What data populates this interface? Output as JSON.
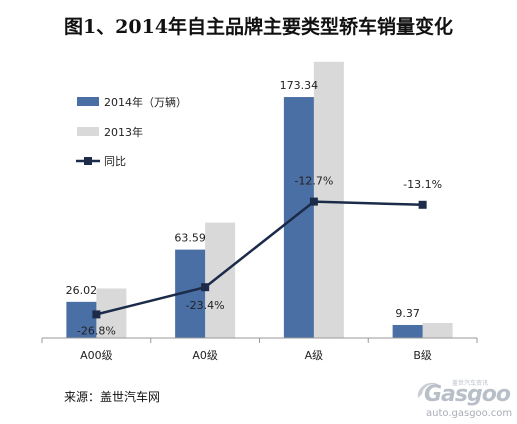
{
  "title": "图1、2014年自主品牌主要类型轿车销量变化",
  "source": "来源：盖世汽车网",
  "watermark": {
    "brand": "Gasgoo",
    "sub": "盖世汽车资讯",
    "url": "auto.gasgoo.com"
  },
  "colors": {
    "series_2014": "#4a6fa5",
    "series_2013": "#d9d9d9",
    "yoy_line": "#1c2b49",
    "axis": "#999999"
  },
  "chart_data": {
    "type": "bar",
    "categories": [
      "A00级",
      "A0级",
      "A级",
      "B级"
    ],
    "series": [
      {
        "name": "2014年（万辆）",
        "values": [
          26.02,
          63.59,
          173.34,
          9.37
        ],
        "labels": [
          "26.02",
          "63.59",
          "173.34",
          "9.37"
        ]
      },
      {
        "name": "2013年",
        "values": [
          35.6,
          83.0,
          198.7,
          10.8
        ]
      }
    ],
    "line_series": {
      "name": "同比",
      "values": [
        -26.8,
        -23.4,
        -12.7,
        -13.1
      ],
      "labels": [
        "-26.8%",
        "-23.4%",
        "-12.7%",
        "-13.1%"
      ]
    },
    "ylim": [
      0,
      200
    ],
    "line_ylim": [
      -30,
      0
    ],
    "legend": "top-left",
    "grid": false
  }
}
